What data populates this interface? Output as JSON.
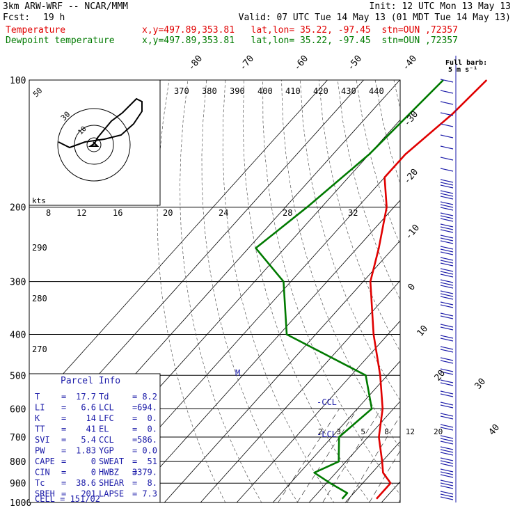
{
  "header": {
    "model": "3km ARW-WRF -- NCAR/MMM",
    "init": "Init: 12 UTC Mon 13 May 13",
    "fcst_label": "Fcst:",
    "fcst_value": "19 h",
    "valid": "Valid: 07 UTC Tue 14 May 13 (01 MDT Tue 14 May 13)",
    "series_lines": [
      {
        "name": "Temperature",
        "info": "x,y=497.89,353.81   lat,lon= 35.22, -97.45  stn=OUN ,72357"
      },
      {
        "name": "Dewpoint temperature",
        "info": "x,y=497.89,353.81   lat,lon= 35.22, -97.45  stn=OUN ,72357"
      }
    ]
  },
  "colors": {
    "temperature": "#e00000",
    "dewpoint": "#007a00",
    "barbs": "#1a1aa8",
    "grid": "#000000"
  },
  "chart_data": {
    "type": "line",
    "chart_kind": "Skew-T log-P sounding",
    "pressure_levels": [
      100,
      200,
      300,
      400,
      500,
      600,
      700,
      800,
      900,
      1000
    ],
    "temperature_axis_labels": [
      "-80",
      "-70",
      "-60",
      "-50",
      "-40",
      "-30",
      "-20",
      "-10",
      "0",
      "10",
      "20",
      "30",
      "40"
    ],
    "theta_labels": [
      "370",
      "380",
      "390",
      "400",
      "410",
      "420",
      "430",
      "440"
    ],
    "mixing_ratio_labels": [
      "2",
      "3",
      "5",
      "8",
      "12",
      "20"
    ],
    "hodograph": {
      "ring_speed_labels": [
        "10",
        "30",
        "50"
      ],
      "speed_axis_labels": [
        "8",
        "12",
        "16",
        "20",
        "24",
        "28",
        "32"
      ],
      "units_label": "kts",
      "side_labels": [
        "290",
        "280",
        "270"
      ]
    },
    "series": [
      {
        "name": "Temperature",
        "color": "#e00000",
        "points": [
          [
            100,
            -56
          ],
          [
            120,
            -57
          ],
          [
            150,
            -60
          ],
          [
            170,
            -60
          ],
          [
            200,
            -52
          ],
          [
            250,
            -44
          ],
          [
            300,
            -38
          ],
          [
            400,
            -24
          ],
          [
            500,
            -12
          ],
          [
            600,
            -3
          ],
          [
            700,
            3
          ],
          [
            800,
            10
          ],
          [
            850,
            13
          ],
          [
            900,
            17.7
          ],
          [
            950,
            17.7
          ],
          [
            980,
            17.7
          ]
        ]
      },
      {
        "name": "Dewpoint temperature",
        "color": "#007a00",
        "points": [
          [
            100,
            -68
          ],
          [
            150,
            -70
          ],
          [
            200,
            -74
          ],
          [
            250,
            -78
          ],
          [
            300,
            -62
          ],
          [
            400,
            -48
          ],
          [
            500,
            -16
          ],
          [
            600,
            -6
          ],
          [
            700,
            -8
          ],
          [
            800,
            -2
          ],
          [
            850,
            -6
          ],
          [
            900,
            1
          ],
          [
            950,
            8.2
          ],
          [
            980,
            8.2
          ]
        ]
      }
    ],
    "annotations": {
      "ccl": "-CCL",
      "lcl": "-LCL",
      "lfc": "M",
      "barb_legend": "Full barb:",
      "barb_legend_value": "5 m s⁻¹"
    }
  },
  "parcel_info": {
    "title": "Parcel Info",
    "rows": [
      [
        "T",
        "=",
        "17.7",
        "Td",
        "=",
        "8.2"
      ],
      [
        "LI",
        "=",
        "6.6",
        "LCL",
        "=",
        "694."
      ],
      [
        "K",
        "=",
        "14",
        "LFC",
        "=",
        "0."
      ],
      [
        "TT",
        "=",
        "41",
        "EL",
        "=",
        "0."
      ],
      [
        "SVI",
        "=",
        "5.4",
        "CCL",
        "=",
        "586."
      ],
      [
        "PW",
        "=",
        "1.83",
        "YGP",
        "=",
        "0.0"
      ],
      [
        "CAPE",
        "=",
        "0",
        "SWEAT",
        "=",
        "51"
      ],
      [
        "CIN",
        "=",
        "0",
        "HWBZ",
        "=",
        "3379."
      ],
      [
        "Tc",
        "=",
        "38.6",
        "SHEAR",
        "=",
        "8."
      ],
      [
        "SREH",
        "=",
        "201",
        "LAPSE",
        "=",
        "7.3"
      ]
    ],
    "cell": "CELL = 151/02"
  }
}
